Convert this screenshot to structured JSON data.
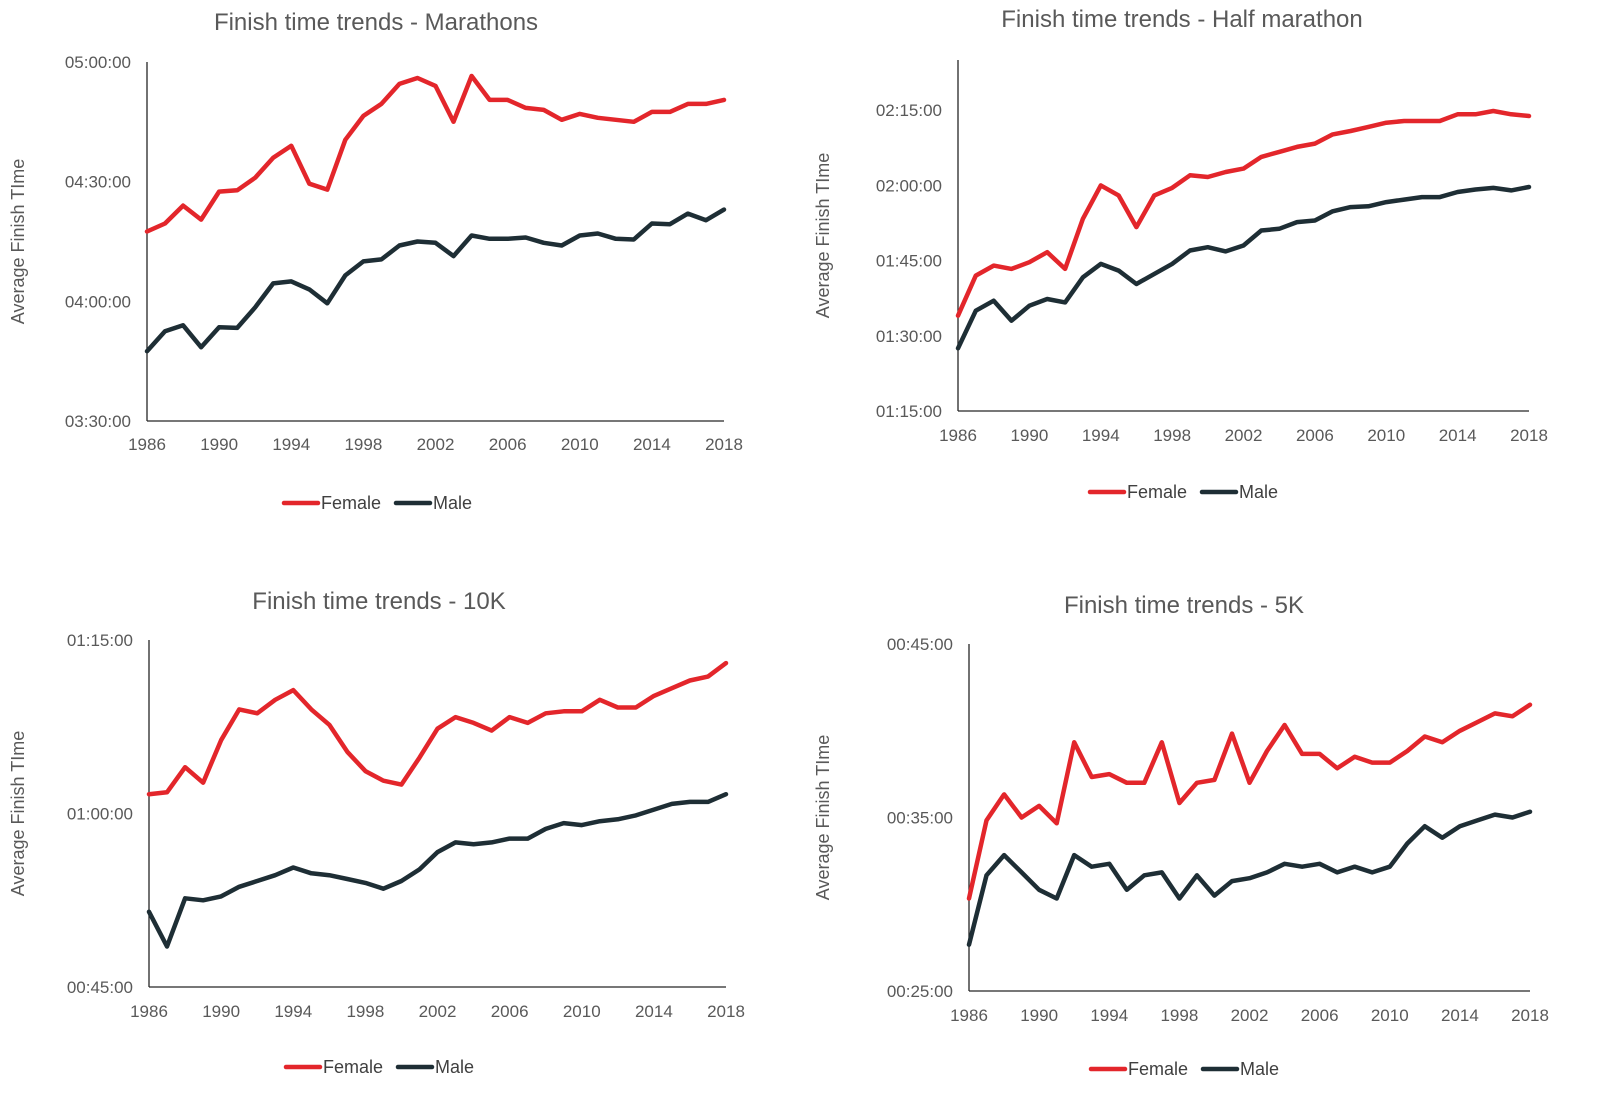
{
  "colors": {
    "female": "#e3262b",
    "male": "#1e2e35"
  },
  "chart_data": [
    {
      "type": "line",
      "title": "Finish time trends - Marathons",
      "ylabel": "Average Finish TIme",
      "xlabel": "",
      "x": [
        1986,
        1987,
        1988,
        1989,
        1990,
        1991,
        1992,
        1993,
        1994,
        1995,
        1996,
        1997,
        1998,
        1999,
        2000,
        2001,
        2002,
        2003,
        2004,
        2005,
        2006,
        2007,
        2008,
        2009,
        2010,
        2011,
        2012,
        2013,
        2014,
        2015,
        2016,
        2017,
        2018
      ],
      "xticks": [
        "1986",
        "1990",
        "1994",
        "1998",
        "2002",
        "2006",
        "2010",
        "2014",
        "2018"
      ],
      "xlim": [
        1986,
        2018
      ],
      "ylim": [
        "03:30:00",
        "05:00:00"
      ],
      "yticks": [
        "03:30:00",
        "04:00:00",
        "04:30:00",
        "05:00:00"
      ],
      "legend": "bottom-center",
      "series": [
        {
          "name": "Female",
          "values": [
            "04:17:30",
            "04:19:30",
            "04:24:00",
            "04:20:30",
            "04:27:30",
            "04:27:50",
            "04:31:00",
            "04:36:00",
            "04:39:00",
            "04:29:30",
            "04:28:00",
            "04:40:30",
            "04:46:30",
            "04:49:30",
            "04:54:30",
            "04:56:00",
            "04:54:00",
            "04:45:00",
            "04:56:30",
            "04:50:30",
            "04:50:30",
            "04:48:30",
            "04:48:00",
            "04:45:30",
            "04:47:00",
            "04:46:00",
            "04:45:30",
            "04:45:00",
            "04:47:30",
            "04:47:30",
            "04:49:30",
            "04:49:30",
            "04:50:30"
          ]
        },
        {
          "name": "Male",
          "values": [
            "03:47:30",
            "03:52:30",
            "03:54:00",
            "03:48:30",
            "03:53:30",
            "03:53:20",
            "03:58:30",
            "04:04:30",
            "04:05:00",
            "04:03:00",
            "03:59:30",
            "04:06:30",
            "04:10:00",
            "04:10:30",
            "04:14:00",
            "04:15:00",
            "04:14:40",
            "04:11:20",
            "04:16:30",
            "04:15:40",
            "04:15:40",
            "04:16:00",
            "04:14:40",
            "04:14:00",
            "04:16:30",
            "04:17:00",
            "04:15:40",
            "04:15:30",
            "04:19:30",
            "04:19:20",
            "04:22:00",
            "04:20:20",
            "04:23:00"
          ]
        }
      ]
    },
    {
      "type": "line",
      "title": "Finish time trends - Half marathon",
      "ylabel": "Average Finish TIme",
      "xlabel": "",
      "x": [
        1986,
        1987,
        1988,
        1989,
        1990,
        1991,
        1992,
        1993,
        1994,
        1995,
        1996,
        1997,
        1998,
        1999,
        2000,
        2001,
        2002,
        2003,
        2004,
        2005,
        2006,
        2007,
        2008,
        2009,
        2010,
        2011,
        2012,
        2013,
        2014,
        2015,
        2016,
        2017,
        2018
      ],
      "xticks": [
        "1986",
        "1990",
        "1994",
        "1998",
        "2002",
        "2006",
        "2010",
        "2014",
        "2018"
      ],
      "xlim": [
        1986,
        2018
      ],
      "ylim": [
        "01:15:00",
        "02:25:00"
      ],
      "yticks": [
        "01:15:00",
        "01:30:00",
        "01:45:00",
        "02:00:00",
        "02:15:00"
      ],
      "legend": "bottom-center",
      "series": [
        {
          "name": "Female",
          "values": [
            "01:34:00",
            "01:42:00",
            "01:44:00",
            "01:43:20",
            "01:44:40",
            "01:46:40",
            "01:43:20",
            "01:53:20",
            "02:00:00",
            "01:58:00",
            "01:51:40",
            "01:58:00",
            "01:59:30",
            "02:02:00",
            "02:01:40",
            "02:02:40",
            "02:03:20",
            "02:05:40",
            "02:06:40",
            "02:07:40",
            "02:08:20",
            "02:10:10",
            "02:10:50",
            "02:11:40",
            "02:12:30",
            "02:12:50",
            "02:12:50",
            "02:12:50",
            "02:14:10",
            "02:14:10",
            "02:14:50",
            "02:14:10",
            "02:13:50"
          ]
        },
        {
          "name": "Male",
          "values": [
            "01:27:30",
            "01:35:00",
            "01:37:00",
            "01:33:00",
            "01:36:00",
            "01:37:20",
            "01:36:40",
            "01:41:40",
            "01:44:20",
            "01:43:00",
            "01:40:20",
            "01:42:20",
            "01:44:20",
            "01:47:00",
            "01:47:40",
            "01:46:50",
            "01:48:00",
            "01:51:00",
            "01:51:20",
            "01:52:40",
            "01:53:00",
            "01:54:50",
            "01:55:40",
            "01:55:50",
            "01:56:40",
            "01:57:10",
            "01:57:40",
            "01:57:40",
            "01:58:40",
            "01:59:10",
            "01:59:30",
            "01:59:00",
            "01:59:40"
          ]
        }
      ]
    },
    {
      "type": "line",
      "title": "Finish time trends - 10K",
      "ylabel": "Average Finish TIme",
      "xlabel": "",
      "x": [
        1986,
        1987,
        1988,
        1989,
        1990,
        1991,
        1992,
        1993,
        1994,
        1995,
        1996,
        1997,
        1998,
        1999,
        2000,
        2001,
        2002,
        2003,
        2004,
        2005,
        2006,
        2007,
        2008,
        2009,
        2010,
        2011,
        2012,
        2013,
        2014,
        2015,
        2016,
        2017,
        2018
      ],
      "xticks": [
        "1986",
        "1990",
        "1994",
        "1998",
        "2002",
        "2006",
        "2010",
        "2014",
        "2018"
      ],
      "xlim": [
        1986,
        2018
      ],
      "ylim": [
        "00:45:00",
        "01:15:00"
      ],
      "yticks": [
        "00:45:00",
        "01:00:00",
        "01:15:00"
      ],
      "legend": "bottom-center",
      "series": [
        {
          "name": "Female",
          "values": [
            "01:01:40",
            "01:01:50",
            "01:04:00",
            "01:02:40",
            "01:06:20",
            "01:09:00",
            "01:08:40",
            "01:09:50",
            "01:10:40",
            "01:09:00",
            "01:07:40",
            "01:05:20",
            "01:03:40",
            "01:02:50",
            "01:02:30",
            "01:04:50",
            "01:07:20",
            "01:08:20",
            "01:07:50",
            "01:07:10",
            "01:08:20",
            "01:07:50",
            "01:08:40",
            "01:08:50",
            "01:08:50",
            "01:09:50",
            "01:09:10",
            "01:09:10",
            "01:10:10",
            "01:10:50",
            "01:11:30",
            "01:11:50",
            "01:13:00"
          ]
        },
        {
          "name": "Male",
          "values": [
            "00:51:30",
            "00:48:30",
            "00:52:40",
            "00:52:30",
            "00:52:50",
            "00:53:40",
            "00:54:10",
            "00:54:40",
            "00:55:20",
            "00:54:50",
            "00:54:40",
            "00:54:20",
            "00:54:00",
            "00:53:30",
            "00:54:10",
            "00:55:10",
            "00:56:40",
            "00:57:30",
            "00:57:20",
            "00:57:30",
            "00:57:50",
            "00:57:50",
            "00:58:40",
            "00:59:10",
            "00:59:00",
            "00:59:20",
            "00:59:30",
            "00:59:50",
            "01:00:20",
            "01:00:50",
            "01:01:00",
            "01:01:00",
            "01:01:40"
          ]
        }
      ]
    },
    {
      "type": "line",
      "title": "Finish time trends - 5K",
      "ylabel": "Average Finish TIme",
      "xlabel": "",
      "x": [
        1986,
        1987,
        1988,
        1989,
        1990,
        1991,
        1992,
        1993,
        1994,
        1995,
        1996,
        1997,
        1998,
        1999,
        2000,
        2001,
        2002,
        2003,
        2004,
        2005,
        2006,
        2007,
        2008,
        2009,
        2010,
        2011,
        2012,
        2013,
        2014,
        2015,
        2016,
        2017,
        2018
      ],
      "xticks": [
        "1986",
        "1990",
        "1994",
        "1998",
        "2002",
        "2006",
        "2010",
        "2014",
        "2018"
      ],
      "xlim": [
        1986,
        2018
      ],
      "ylim": [
        "00:25:00",
        "00:45:00"
      ],
      "yticks": [
        "00:25:00",
        "00:35:00",
        "00:45:00"
      ],
      "legend": "bottom-center",
      "series": [
        {
          "name": "Female",
          "values": [
            "00:30:20",
            "00:34:50",
            "00:36:20",
            "00:35:00",
            "00:35:40",
            "00:34:40",
            "00:39:20",
            "00:37:20",
            "00:37:30",
            "00:37:00",
            "00:37:00",
            "00:39:20",
            "00:35:50",
            "00:37:00",
            "00:37:10",
            "00:39:50",
            "00:37:00",
            "00:38:50",
            "00:40:20",
            "00:38:40",
            "00:38:40",
            "00:37:50",
            "00:38:30",
            "00:38:10",
            "00:38:10",
            "00:38:50",
            "00:39:40",
            "00:39:20",
            "00:40:00",
            "00:40:30",
            "00:41:00",
            "00:40:50",
            "00:41:30"
          ]
        },
        {
          "name": "Male",
          "values": [
            "00:27:40",
            "00:31:40",
            "00:32:50",
            "00:31:50",
            "00:30:50",
            "00:30:20",
            "00:32:50",
            "00:32:10",
            "00:32:20",
            "00:30:50",
            "00:31:40",
            "00:31:50",
            "00:30:20",
            "00:31:40",
            "00:30:30",
            "00:31:20",
            "00:31:30",
            "00:31:50",
            "00:32:20",
            "00:32:10",
            "00:32:20",
            "00:31:50",
            "00:32:10",
            "00:31:50",
            "00:32:10",
            "00:33:30",
            "00:34:30",
            "00:33:50",
            "00:34:30",
            "00:34:50",
            "00:35:10",
            "00:35:00",
            "00:35:20"
          ]
        }
      ]
    }
  ]
}
